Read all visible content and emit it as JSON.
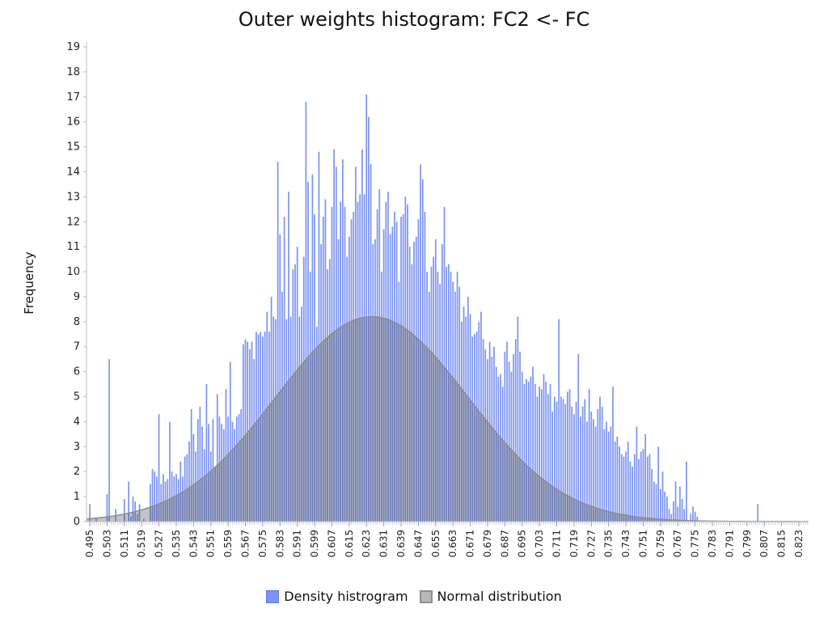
{
  "chart_data": {
    "type": "bar",
    "title": "Outer weights histogram: FC2 <- FC",
    "ylabel": "Frequency",
    "xlabel": "",
    "ylim": [
      0,
      19
    ],
    "yticks": [
      0,
      1,
      2,
      3,
      4,
      5,
      6,
      7,
      8,
      9,
      10,
      11,
      12,
      13,
      14,
      15,
      16,
      17,
      18,
      19
    ],
    "xlim": [
      0.4935,
      0.8275
    ],
    "xtick_start": 0.495,
    "xtick_step": 0.004,
    "xtick_count": 83,
    "xtick_labels": [
      "0.495",
      "0.503",
      "0.511",
      "0.519",
      "0.527",
      "0.535",
      "0.543",
      "0.551",
      "0.559",
      "0.567",
      "0.575",
      "0.583",
      "0.591",
      "0.599",
      "0.607",
      "0.615",
      "0.623",
      "0.631",
      "0.639",
      "0.647",
      "0.655",
      "0.663",
      "0.671",
      "0.679",
      "0.687",
      "0.695",
      "0.703",
      "0.711",
      "0.719",
      "0.727",
      "0.735",
      "0.743",
      "0.751",
      "0.759",
      "0.767",
      "0.775",
      "0.783",
      "0.791",
      "0.799",
      "0.807",
      "0.815",
      "0.823"
    ],
    "series": [
      {
        "name": "Density histrogram",
        "color": "#7b93f2",
        "bin_start": 0.495,
        "bin_width": 0.001,
        "values": [
          0.7,
          0,
          0,
          0.1,
          0,
          0,
          0,
          0,
          1.1,
          6.5,
          0,
          0,
          0.5,
          0,
          0,
          0,
          0.9,
          0,
          1.6,
          0.2,
          1.0,
          0.8,
          0.3,
          0.7,
          0,
          0.1,
          0,
          0,
          1.5,
          2.1,
          2.0,
          1.8,
          4.3,
          1.5,
          1.9,
          1.6,
          1.7,
          4.0,
          2.0,
          1.8,
          1.9,
          1.7,
          2.4,
          1.8,
          2.6,
          2.7,
          3.2,
          4.5,
          3.5,
          2.8,
          4.1,
          4.6,
          3.8,
          2.9,
          5.5,
          3.9,
          2.8,
          4.1,
          2.2,
          5.1,
          4.2,
          3.9,
          3.7,
          5.3,
          4.2,
          6.4,
          4.0,
          3.7,
          4.2,
          4.3,
          4.5,
          7.1,
          7.3,
          7.2,
          6.9,
          7.2,
          6.5,
          7.6,
          7.5,
          7.6,
          7.4,
          7.6,
          8.4,
          7.6,
          9.0,
          8.2,
          8.1,
          14.4,
          11.5,
          9.2,
          12.2,
          8.1,
          13.2,
          8.2,
          10.1,
          10.3,
          11.0,
          8.2,
          8.6,
          10.6,
          16.8,
          13.6,
          10.0,
          13.9,
          12.3,
          7.8,
          14.8,
          11.1,
          12.2,
          12.9,
          10.1,
          10.5,
          12.6,
          14.9,
          14.2,
          11.3,
          12.8,
          14.5,
          12.6,
          10.6,
          11.4,
          12.1,
          12.4,
          14.2,
          12.8,
          13.1,
          14.9,
          13.1,
          17.1,
          16.2,
          14.3,
          11.1,
          11.3,
          12.5,
          13.3,
          10.0,
          11.7,
          12.8,
          13.2,
          11.5,
          11.8,
          12.4,
          12.0,
          9.6,
          12.2,
          12.3,
          13.0,
          12.7,
          11.0,
          10.3,
          11.2,
          11.4,
          12.1,
          14.3,
          13.7,
          12.4,
          10.0,
          9.2,
          10.2,
          10.6,
          11.3,
          10.0,
          9.5,
          11.1,
          12.6,
          10.2,
          10.3,
          10.0,
          9.6,
          9.2,
          10.0,
          9.4,
          8.0,
          8.6,
          8.2,
          9.0,
          8.3,
          7.4,
          7.5,
          7.6,
          8.0,
          8.4,
          7.3,
          6.9,
          6.5,
          7.2,
          6.6,
          7.0,
          6.2,
          5.8,
          5.9,
          5.4,
          6.8,
          7.2,
          6.4,
          6.0,
          6.7,
          7.3,
          8.2,
          6.8,
          6.0,
          5.5,
          5.7,
          5.6,
          5.8,
          6.2,
          5.5,
          5.0,
          5.4,
          5.3,
          5.9,
          5.6,
          5.1,
          5.5,
          4.4,
          5.0,
          4.8,
          8.1,
          5.0,
          4.9,
          4.7,
          5.2,
          5.3,
          4.6,
          4.3,
          4.8,
          6.7,
          4.2,
          4.6,
          4.9,
          4.0,
          5.3,
          4.4,
          4.1,
          3.8,
          4.5,
          5.0,
          4.6,
          3.7,
          4.0,
          3.6,
          3.8,
          5.4,
          3.2,
          3.4,
          3.0,
          2.7,
          2.6,
          2.8,
          3.2,
          2.4,
          2.2,
          2.7,
          3.8,
          2.5,
          2.8,
          2.9,
          3.5,
          2.6,
          2.7,
          2.1,
          1.6,
          1.5,
          3.0,
          1.3,
          2.0,
          1.2,
          1.0,
          0.5,
          0.3,
          0.8,
          1.6,
          0.6,
          1.4,
          0.9,
          0.5,
          2.4,
          0,
          0.3,
          0.6,
          0.4,
          0.2,
          0,
          0,
          0,
          0,
          0,
          0,
          0,
          0,
          0,
          0,
          0,
          0,
          0,
          0,
          0,
          0,
          0,
          0,
          0,
          0,
          0,
          0,
          0,
          0,
          0,
          0,
          0,
          0.7
        ]
      },
      {
        "name": "Normal distribution",
        "color": "#8e8e8e",
        "mean": 0.6255,
        "std": 0.0445,
        "peak": 8.2
      }
    ]
  },
  "legend": {
    "hist_label": "Density histrogram",
    "norm_label": "Normal distribution"
  }
}
